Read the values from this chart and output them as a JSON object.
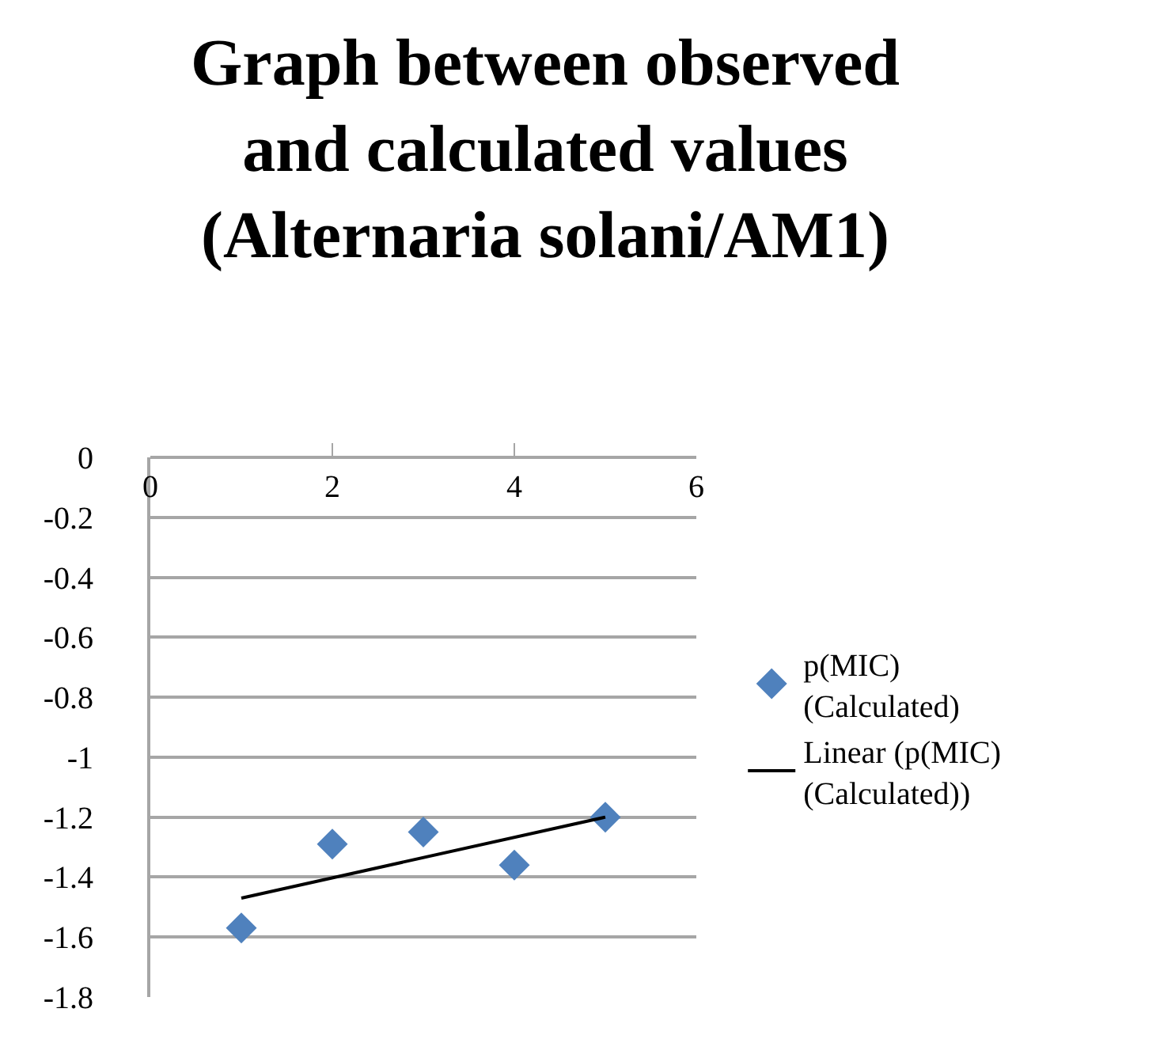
{
  "chart_data": {
    "type": "scatter",
    "title": "Graph between observed and calculated values (Alternaria solani/AM1)",
    "x": [
      1,
      2,
      3,
      4,
      5
    ],
    "series": [
      {
        "name": "p(MIC) (Calculated)",
        "color": "#4f81bd",
        "marker": "diamond",
        "values": [
          -1.57,
          -1.29,
          -1.25,
          -1.36,
          -1.2
        ]
      },
      {
        "name": "Linear (p(MIC) (Calculated))",
        "type": "line",
        "color": "#000000",
        "line_style": "solid",
        "marker": "none",
        "x": [
          1,
          5
        ],
        "values": [
          -1.47,
          -1.2
        ]
      }
    ],
    "xlim": [
      0,
      6
    ],
    "xticks": [
      0,
      2,
      4,
      6
    ],
    "ylim": [
      -1.8,
      0
    ],
    "yticks": [
      0,
      -0.2,
      -0.4,
      -0.6,
      -0.8,
      -1,
      -1.2,
      -1.4,
      -1.6,
      -1.8
    ],
    "grid": "y",
    "legend": "right"
  }
}
